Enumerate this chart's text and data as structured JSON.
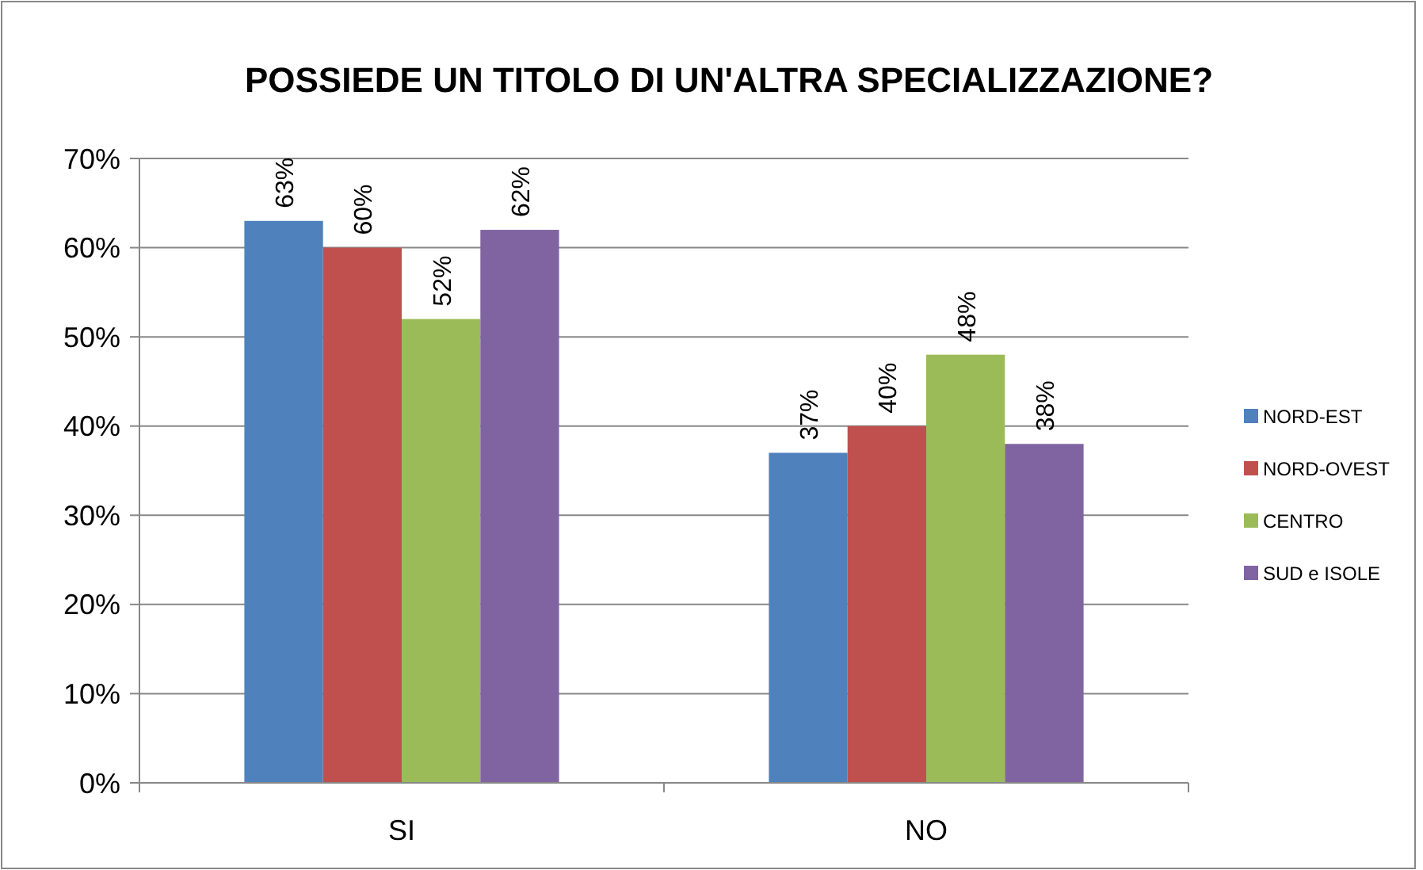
{
  "chart_data": {
    "type": "bar",
    "title": "POSSIEDE UN TITOLO DI UN'ALTRA SPECIALIZZAZIONE?",
    "categories": [
      "SI",
      "NO"
    ],
    "series": [
      {
        "name": "NORD-EST",
        "color": "#4f81bd",
        "values": [
          63,
          37
        ],
        "value_labels": [
          "63%",
          "37%"
        ]
      },
      {
        "name": "NORD-OVEST",
        "color": "#c0504d",
        "values": [
          60,
          40
        ],
        "value_labels": [
          "60%",
          "40%"
        ]
      },
      {
        "name": "CENTRO",
        "color": "#9bbb59",
        "values": [
          52,
          48
        ],
        "value_labels": [
          "52%",
          "48%"
        ]
      },
      {
        "name": "SUD e ISOLE",
        "color": "#8064a2",
        "values": [
          62,
          38
        ],
        "value_labels": [
          "62%",
          "38%"
        ]
      }
    ],
    "ylim": [
      0,
      70
    ],
    "yticks": [
      {
        "value": 0,
        "label": "0%"
      },
      {
        "value": 10,
        "label": "10%"
      },
      {
        "value": 20,
        "label": "20%"
      },
      {
        "value": 30,
        "label": "30%"
      },
      {
        "value": 40,
        "label": "40%"
      },
      {
        "value": 50,
        "label": "50%"
      },
      {
        "value": 60,
        "label": "60%"
      },
      {
        "value": 70,
        "label": "70%"
      }
    ],
    "grid": "y",
    "legend": "right"
  }
}
